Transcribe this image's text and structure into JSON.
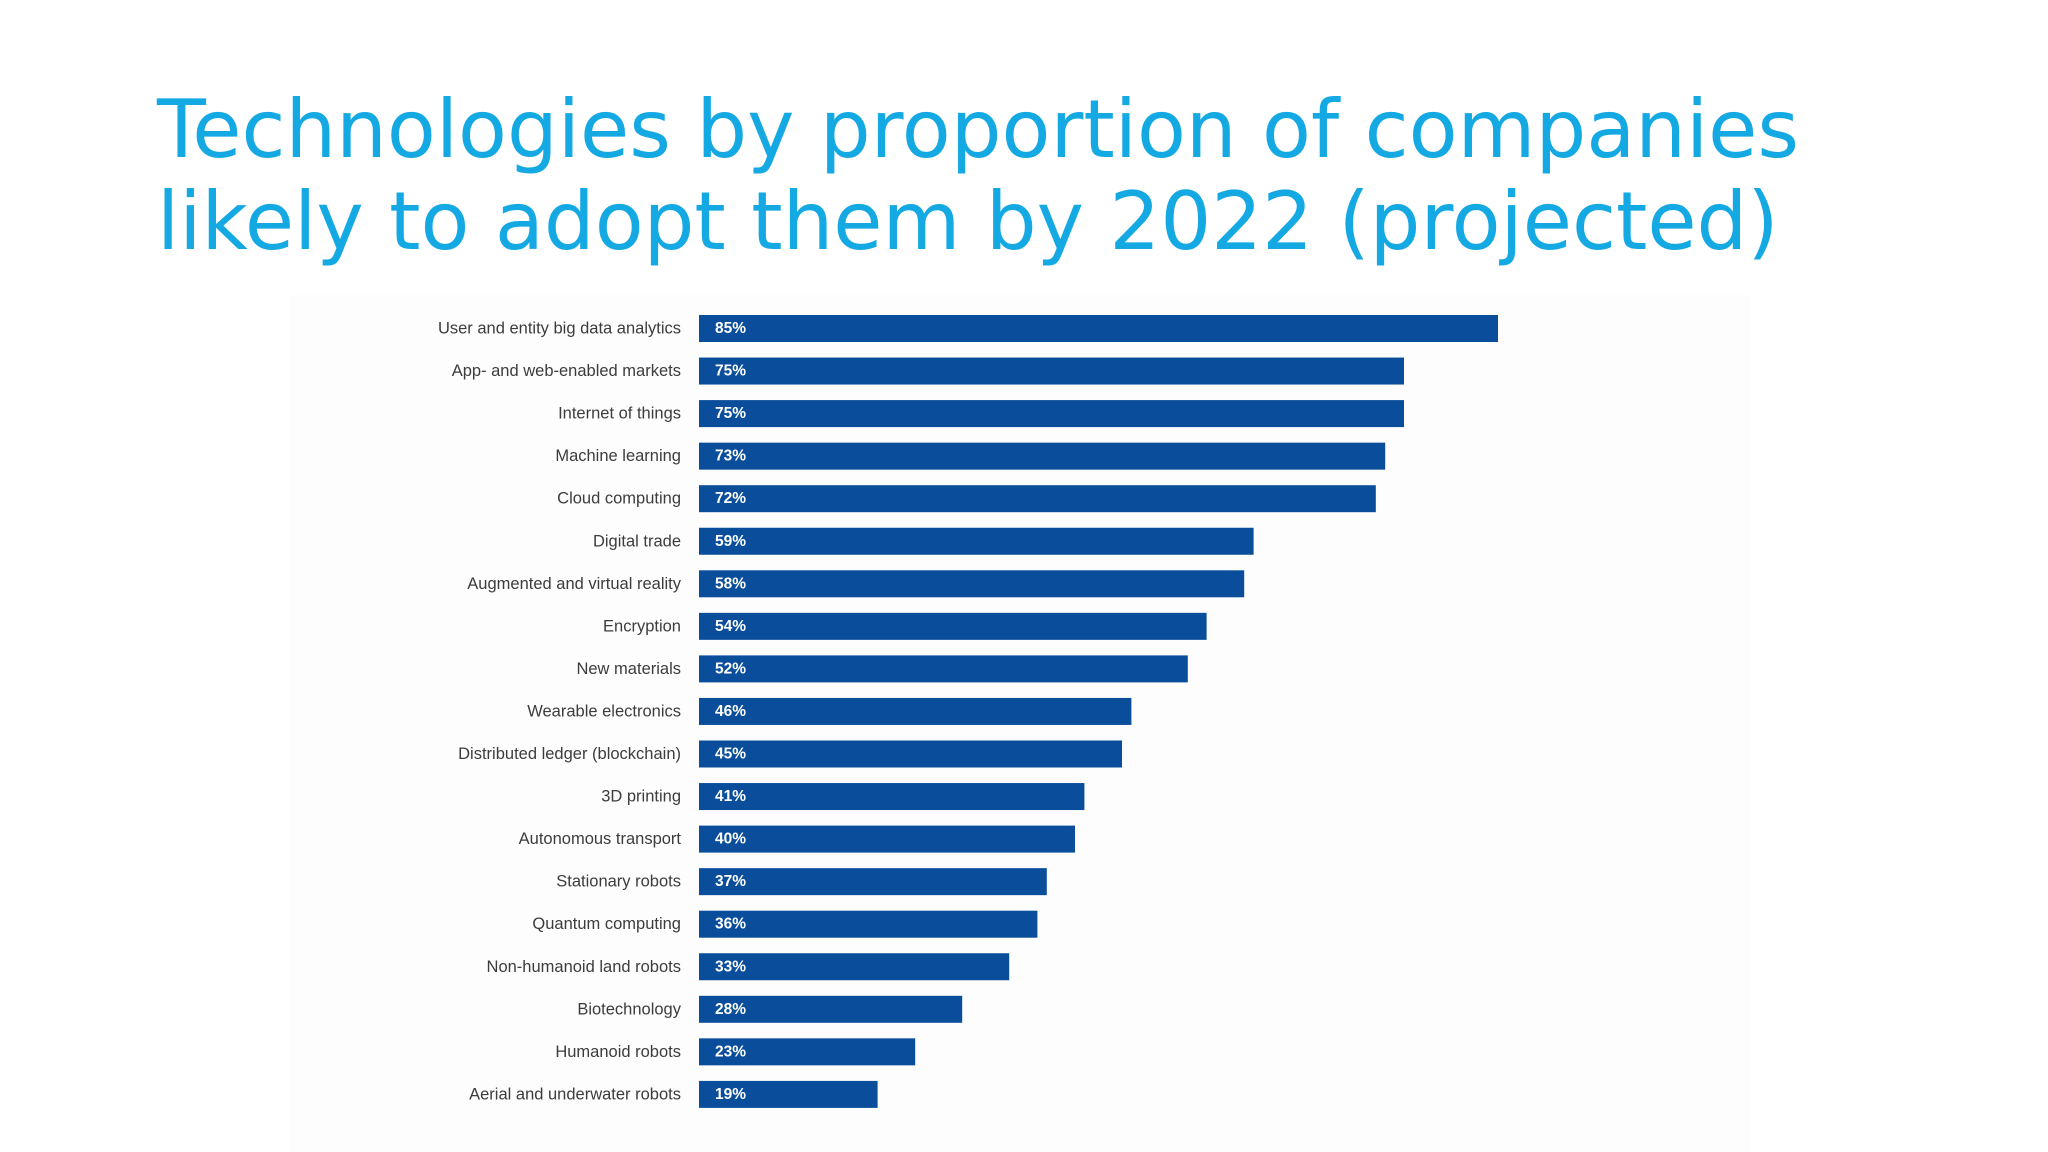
{
  "slide": {
    "title_line1": "Technologies by proportion of companies",
    "title_line2": "likely to adopt them by 2022 (projected)"
  },
  "colors": {
    "title": "#15a9e3",
    "bar": "#0a4d9b",
    "bar_label": "#ffffff",
    "category_label": "#3c3c3c"
  },
  "chart_data": {
    "type": "bar",
    "orientation": "horizontal",
    "title": "",
    "xlabel": "",
    "ylabel": "",
    "xlim": [
      0,
      100
    ],
    "grid": false,
    "legend": "none",
    "value_suffix": "%",
    "categories": [
      "User and entity big data analytics",
      "App- and web-enabled markets",
      "Internet of things",
      "Machine learning",
      "Cloud computing",
      "Digital trade",
      "Augmented and virtual reality",
      "Encryption",
      "New materials",
      "Wearable electronics",
      "Distributed ledger (blockchain)",
      "3D printing",
      "Autonomous transport",
      "Stationary robots",
      "Quantum computing",
      "Non-humanoid land robots",
      "Biotechnology",
      "Humanoid robots",
      "Aerial and underwater robots"
    ],
    "values": [
      85,
      75,
      75,
      73,
      72,
      59,
      58,
      54,
      52,
      46,
      45,
      41,
      40,
      37,
      36,
      33,
      28,
      23,
      19
    ]
  }
}
